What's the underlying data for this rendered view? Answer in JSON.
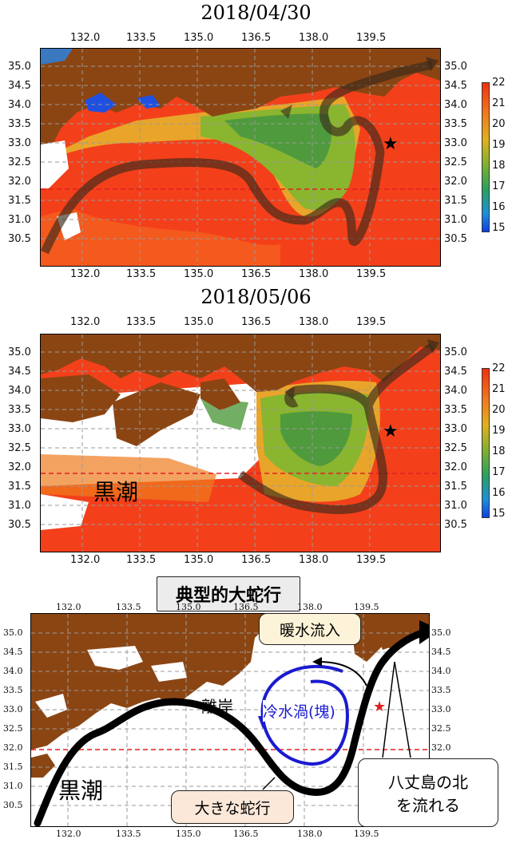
{
  "panel1": {
    "title": "2018/04/30",
    "lon_ticks": [
      "132.0",
      "133.5",
      "135.0",
      "136.5",
      "138.0",
      "139.5"
    ],
    "lat_ticks": [
      "35.0",
      "34.5",
      "34.0",
      "33.5",
      "33.0",
      "32.5",
      "32.0",
      "31.5",
      "31.0",
      "30.5"
    ],
    "colorbar_ticks": [
      "22",
      "21",
      "20",
      "19",
      "18",
      "17",
      "16",
      "15"
    ]
  },
  "panel2": {
    "title": "2018/05/06",
    "lon_ticks": [
      "132.0",
      "133.5",
      "135.0",
      "136.5",
      "138.0",
      "139.5"
    ],
    "lat_ticks": [
      "35.0",
      "34.5",
      "34.0",
      "33.5",
      "33.0",
      "32.5",
      "32.0",
      "31.5",
      "31.0",
      "30.5"
    ],
    "colorbar_ticks": [
      "22",
      "21",
      "20",
      "19",
      "18",
      "17",
      "16",
      "15"
    ],
    "kuroshio_label": "黒潮"
  },
  "panel3": {
    "title": "典型的大蛇行",
    "lon_ticks": [
      "132.0",
      "133.5",
      "135.0",
      "136.5",
      "138.0",
      "139.5"
    ],
    "lat_ticks": [
      "35.0",
      "34.5",
      "34.0",
      "33.5",
      "33.0",
      "32.5",
      "32.0",
      "31.5",
      "31.0",
      "30.5"
    ],
    "kuroshio_label": "黒潮",
    "callout_warm": "暖水流入",
    "label_offshore": "離岸",
    "label_cold": "冷水渦(塊)",
    "callout_meander": "大きな蛇行",
    "callout_hachijo_line1": "八丈島の北",
    "callout_hachijo_line2": "を流れる"
  },
  "colors": {
    "land": "#8b4513",
    "warm": "#f03a12",
    "cold_text": "#1a1ad0",
    "dashed_line": "#e02020",
    "callout_fill": "#fbe8d9"
  }
}
